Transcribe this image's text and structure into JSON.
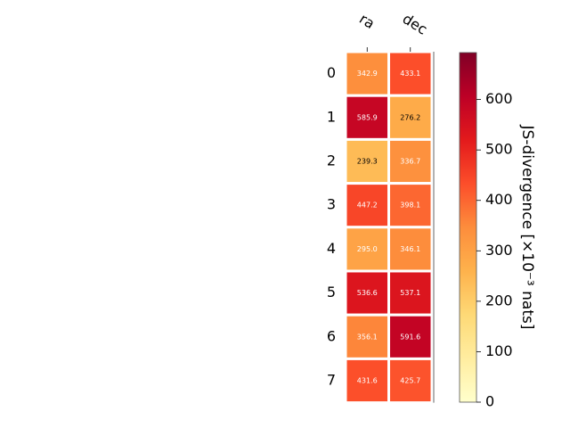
{
  "chart_data": {
    "type": "heatmap",
    "columns": [
      "ra",
      "dec"
    ],
    "rows": [
      "0",
      "1",
      "2",
      "3",
      "4",
      "5",
      "6",
      "7"
    ],
    "values": [
      [
        342.9,
        433.1
      ],
      [
        585.9,
        276.2
      ],
      [
        239.3,
        336.7
      ],
      [
        447.2,
        398.1
      ],
      [
        295.0,
        346.1
      ],
      [
        536.6,
        537.1
      ],
      [
        356.1,
        591.6
      ],
      [
        431.6,
        425.7
      ]
    ],
    "cell_labels": [
      [
        "342.9",
        "433.1"
      ],
      [
        "585.9",
        "276.2"
      ],
      [
        "239.3",
        "336.7"
      ],
      [
        "447.2",
        "398.1"
      ],
      [
        "295.0",
        "346.1"
      ],
      [
        "536.6",
        "537.1"
      ],
      [
        "356.1",
        "591.6"
      ],
      [
        "431.6",
        "425.7"
      ]
    ],
    "colorbar": {
      "label": "JS-divergence [×10⁻³ nats]",
      "vmin": 0,
      "vmax": 693,
      "ticks": [
        0,
        100,
        200,
        300,
        400,
        500,
        600
      ],
      "tick_labels": [
        "0",
        "100",
        "200",
        "300",
        "400",
        "500",
        "600"
      ],
      "colormap": "YlOrRd"
    }
  }
}
